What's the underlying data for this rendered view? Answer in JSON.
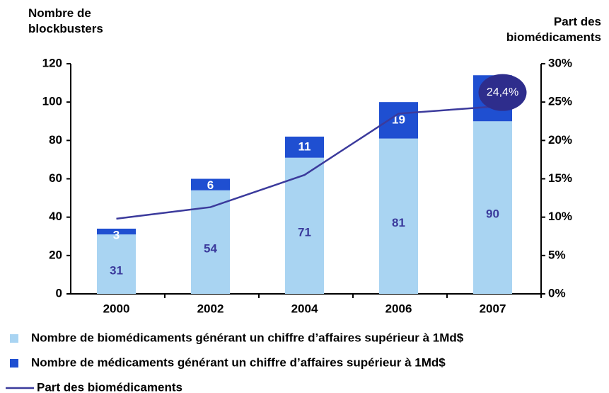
{
  "chart_data": {
    "type": "bar",
    "y_label": "Nombre de blockbusters",
    "y2_label": "Part des biomédicaments",
    "categories": [
      "2000",
      "2002",
      "2004",
      "2006",
      "2007"
    ],
    "stacked": true,
    "series": [
      {
        "name": "Nombre de biomédicaments générant un chiffre d’affaires supérieur à 1Md$",
        "color": "#a9d4f2",
        "values": [
          31,
          54,
          71,
          81,
          90
        ]
      },
      {
        "name": "Nombre de médicaments générant un chiffre d’affaires supérieur à 1Md$",
        "color": "#1f4fd1",
        "values": [
          3,
          6,
          11,
          19,
          24
        ]
      },
      {
        "name": "Part des biomédicaments",
        "type": "line",
        "axis": "y2",
        "color": "#3b3a9c",
        "values": [
          9.8,
          11.3,
          15.5,
          23.5,
          24.4
        ],
        "value_labels": [
          null,
          null,
          null,
          null,
          "24,4%"
        ]
      }
    ],
    "ylim": [
      0,
      120
    ],
    "yticks": [
      0,
      20,
      40,
      60,
      80,
      100,
      120
    ],
    "y2lim": [
      0,
      30
    ],
    "y2ticks": [
      {
        "value": 0,
        "label": "0%"
      },
      {
        "value": 5,
        "label": "5%"
      },
      {
        "value": 10,
        "label": "10%"
      },
      {
        "value": 15,
        "label": "15%"
      },
      {
        "value": 20,
        "label": "20%"
      },
      {
        "value": 25,
        "label": "25%"
      },
      {
        "value": 30,
        "label": "30%"
      }
    ]
  }
}
